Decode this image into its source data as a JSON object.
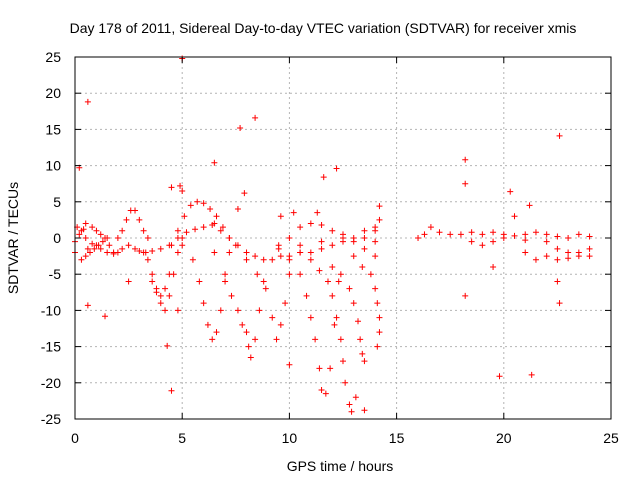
{
  "chart_data": {
    "type": "scatter",
    "title": "Day 178 of 2011, Sidereal Day-to-day VTEC variation (SDTVAR) for receiver xmis",
    "xlabel": "GPS time / hours",
    "ylabel": "SDTVAR / TECUs",
    "xlim": [
      0,
      25
    ],
    "ylim": [
      -25,
      25
    ],
    "xticks": [
      "0",
      "5",
      "10",
      "15",
      "20",
      "25"
    ],
    "yticks": [
      "25",
      "20",
      "15",
      "10",
      "5",
      "0",
      "-5",
      "-10",
      "-15",
      "-20",
      "-25"
    ],
    "grid": true,
    "marker": "+",
    "color": "#ff0000",
    "series": [
      {
        "name": "SDTVAR",
        "points": [
          [
            0.0,
            -0.5
          ],
          [
            0.2,
            0.5
          ],
          [
            0.4,
            1.2
          ],
          [
            0.5,
            0.0
          ],
          [
            0.6,
            -1.5
          ],
          [
            0.8,
            -0.8
          ],
          [
            1.0,
            -1.0
          ],
          [
            1.2,
            -1.5
          ],
          [
            1.5,
            -2.0
          ],
          [
            1.8,
            -2.2
          ],
          [
            2.0,
            -2.0
          ],
          [
            2.2,
            -1.5
          ],
          [
            2.5,
            -1.0
          ],
          [
            2.8,
            -1.5
          ],
          [
            3.0,
            -1.8
          ],
          [
            3.3,
            -2.0
          ],
          [
            3.6,
            -1.8
          ],
          [
            4.0,
            -1.5
          ],
          [
            4.4,
            -1.0
          ],
          [
            4.8,
            0.0
          ],
          [
            5.2,
            0.8
          ],
          [
            5.6,
            1.2
          ],
          [
            6.0,
            1.5
          ],
          [
            6.4,
            1.8
          ],
          [
            6.8,
            1.0
          ],
          [
            7.2,
            0.0
          ],
          [
            7.6,
            -1.0
          ],
          [
            8.0,
            -2.0
          ],
          [
            8.4,
            -2.5
          ],
          [
            8.8,
            -3.0
          ],
          [
            9.2,
            -3.0
          ],
          [
            9.6,
            -2.5
          ],
          [
            10.0,
            -2.5
          ],
          [
            10.5,
            -2.0
          ],
          [
            11.0,
            -2.0
          ],
          [
            11.5,
            -1.5
          ],
          [
            12.0,
            -1.0
          ],
          [
            12.5,
            -0.5
          ],
          [
            13.0,
            0.0
          ],
          [
            13.5,
            0.0
          ],
          [
            14.0,
            -0.5
          ],
          [
            0.3,
            1.0
          ],
          [
            0.5,
            2.0
          ],
          [
            0.8,
            1.5
          ],
          [
            1.0,
            1.0
          ],
          [
            1.2,
            0.5
          ],
          [
            1.4,
            0.0
          ],
          [
            1.6,
            -1.0
          ],
          [
            1.8,
            -2.0
          ],
          [
            0.3,
            -3.0
          ],
          [
            0.5,
            -2.5
          ],
          [
            0.7,
            -2.0
          ],
          [
            0.9,
            -1.5
          ],
          [
            1.1,
            -1.0
          ],
          [
            1.3,
            -0.5
          ],
          [
            1.5,
            0.0
          ],
          [
            2.0,
            0.0
          ],
          [
            2.2,
            1.0
          ],
          [
            2.4,
            2.5
          ],
          [
            2.6,
            3.8
          ],
          [
            2.8,
            3.8
          ],
          [
            3.0,
            2.5
          ],
          [
            3.2,
            1.0
          ],
          [
            3.4,
            0.0
          ],
          [
            3.2,
            -2.0
          ],
          [
            3.4,
            -3.0
          ],
          [
            3.6,
            -5.0
          ],
          [
            3.8,
            -7.0
          ],
          [
            4.0,
            -9.0
          ],
          [
            4.2,
            -10.0
          ],
          [
            4.4,
            -8.0
          ],
          [
            4.6,
            -5.0
          ],
          [
            4.8,
            -2.0
          ],
          [
            5.0,
            0.0
          ],
          [
            3.6,
            -6.0
          ],
          [
            3.8,
            -7.5
          ],
          [
            4.0,
            -8.0
          ],
          [
            4.2,
            -7.0
          ],
          [
            4.4,
            -5.0
          ],
          [
            4.5,
            -1.0
          ],
          [
            4.8,
            1.0
          ],
          [
            5.1,
            3.0
          ],
          [
            5.4,
            4.5
          ],
          [
            5.7,
            5.0
          ],
          [
            6.0,
            4.8
          ],
          [
            6.3,
            4.0
          ],
          [
            6.6,
            3.0
          ],
          [
            6.9,
            1.5
          ],
          [
            7.2,
            0.0
          ],
          [
            5.0,
            -1.0
          ],
          [
            5.5,
            -3.0
          ],
          [
            5.8,
            -6.0
          ],
          [
            6.0,
            -9.0
          ],
          [
            6.2,
            -12.0
          ],
          [
            6.4,
            -14.0
          ],
          [
            6.6,
            -13.0
          ],
          [
            6.8,
            -10.0
          ],
          [
            7.0,
            -6.0
          ],
          [
            7.2,
            -2.0
          ],
          [
            6.5,
            -2.0
          ],
          [
            7.0,
            -5.0
          ],
          [
            7.3,
            -8.0
          ],
          [
            7.6,
            -10.0
          ],
          [
            7.8,
            -12.0
          ],
          [
            8.0,
            -13.0
          ],
          [
            8.1,
            -15.0
          ],
          [
            8.2,
            -16.5
          ],
          [
            8.4,
            -14.0
          ],
          [
            8.6,
            -10.0
          ],
          [
            8.8,
            -6.0
          ],
          [
            7.5,
            -1.0
          ],
          [
            8.0,
            -3.0
          ],
          [
            8.5,
            -5.0
          ],
          [
            8.9,
            -7.0
          ],
          [
            9.2,
            -11.0
          ],
          [
            9.4,
            -14.0
          ],
          [
            9.6,
            -12.0
          ],
          [
            9.8,
            -9.0
          ],
          [
            10.0,
            -5.0
          ],
          [
            9.5,
            -1.0
          ],
          [
            10.0,
            -3.0
          ],
          [
            10.5,
            -5.0
          ],
          [
            10.8,
            -8.0
          ],
          [
            11.0,
            -11.0
          ],
          [
            11.2,
            -14.0
          ],
          [
            11.4,
            -18.0
          ],
          [
            11.5,
            -21.0
          ],
          [
            11.7,
            -21.5
          ],
          [
            11.9,
            -18.0
          ],
          [
            12.1,
            -12.0
          ],
          [
            12.3,
            -6.0
          ],
          [
            10.5,
            -2.0
          ],
          [
            11.0,
            -3.0
          ],
          [
            11.4,
            -4.5
          ],
          [
            11.8,
            -6.0
          ],
          [
            12.0,
            -8.0
          ],
          [
            12.2,
            -11.0
          ],
          [
            12.4,
            -14.0
          ],
          [
            12.5,
            -17.0
          ],
          [
            12.6,
            -20.0
          ],
          [
            12.8,
            -23.0
          ],
          [
            12.9,
            -24.0
          ],
          [
            13.1,
            -22.0
          ],
          [
            12.0,
            -4.0
          ],
          [
            12.4,
            -5.0
          ],
          [
            12.8,
            -7.0
          ],
          [
            13.0,
            -9.0
          ],
          [
            13.2,
            -11.5
          ],
          [
            13.3,
            -14.0
          ],
          [
            13.4,
            -16.0
          ],
          [
            13.5,
            -17.0
          ],
          [
            13.0,
            -2.5
          ],
          [
            13.4,
            -4.0
          ],
          [
            13.8,
            -5.0
          ],
          [
            14.0,
            -7.0
          ],
          [
            14.1,
            -9.0
          ],
          [
            14.2,
            -11.0
          ],
          [
            14.2,
            -13.0
          ],
          [
            14.1,
            -15.0
          ],
          [
            10.0,
            0.0
          ],
          [
            10.5,
            1.5
          ],
          [
            11.0,
            2.0
          ],
          [
            11.5,
            1.8
          ],
          [
            12.0,
            1.0
          ],
          [
            12.5,
            0.0
          ],
          [
            13.0,
            -0.5
          ],
          [
            13.5,
            -1.5
          ],
          [
            14.0,
            -2.5
          ],
          [
            9.5,
            -1.5
          ],
          [
            10.5,
            -1.0
          ],
          [
            11.5,
            -0.5
          ],
          [
            12.5,
            0.5
          ],
          [
            13.5,
            1.0
          ],
          [
            14.0,
            1.5
          ],
          [
            16.0,
            0.0
          ],
          [
            16.3,
            0.5
          ],
          [
            16.6,
            1.5
          ],
          [
            17.0,
            0.8
          ],
          [
            17.5,
            0.5
          ],
          [
            18.0,
            0.5
          ],
          [
            18.5,
            0.8
          ],
          [
            19.0,
            0.5
          ],
          [
            19.5,
            0.8
          ],
          [
            20.0,
            0.5
          ],
          [
            20.5,
            0.3
          ],
          [
            21.0,
            0.5
          ],
          [
            21.5,
            0.8
          ],
          [
            22.0,
            0.5
          ],
          [
            22.5,
            0.2
          ],
          [
            23.0,
            0.0
          ],
          [
            23.5,
            0.5
          ],
          [
            24.0,
            0.2
          ],
          [
            18.5,
            -0.5
          ],
          [
            19.0,
            -1.0
          ],
          [
            19.5,
            -0.5
          ],
          [
            20.0,
            0.0
          ],
          [
            21.0,
            -0.3
          ],
          [
            22.0,
            -0.5
          ],
          [
            22.5,
            -1.5
          ],
          [
            23.0,
            -2.0
          ],
          [
            23.5,
            -2.5
          ],
          [
            24.0,
            -2.5
          ],
          [
            21.0,
            -2.0
          ],
          [
            21.5,
            -3.0
          ],
          [
            22.0,
            -2.5
          ],
          [
            22.5,
            -3.0
          ],
          [
            23.0,
            -2.8
          ],
          [
            23.5,
            -2.0
          ],
          [
            24.0,
            -1.5
          ],
          [
            0.2,
            9.7
          ],
          [
            0.6,
            18.8
          ],
          [
            0.6,
            -9.3
          ],
          [
            1.4,
            -10.8
          ],
          [
            4.3,
            -14.9
          ],
          [
            4.5,
            -21.1
          ],
          [
            4.8,
            -10.0
          ],
          [
            5.0,
            24.8
          ],
          [
            6.5,
            10.4
          ],
          [
            7.7,
            15.2
          ],
          [
            8.4,
            16.6
          ],
          [
            7.6,
            4.0
          ],
          [
            7.9,
            6.2
          ],
          [
            4.5,
            7.0
          ],
          [
            4.9,
            7.2
          ],
          [
            5.0,
            6.5
          ],
          [
            10.0,
            -17.5
          ],
          [
            11.3,
            3.5
          ],
          [
            11.6,
            8.4
          ],
          [
            12.2,
            9.6
          ],
          [
            13.5,
            -23.8
          ],
          [
            14.2,
            4.4
          ],
          [
            18.2,
            10.8
          ],
          [
            18.2,
            7.5
          ],
          [
            18.2,
            -8.0
          ],
          [
            19.5,
            -4.0
          ],
          [
            19.8,
            -19.1
          ],
          [
            20.3,
            6.4
          ],
          [
            21.3,
            -18.9
          ],
          [
            22.6,
            14.1
          ],
          [
            22.6,
            -9.0
          ],
          [
            22.5,
            -6.0
          ],
          [
            21.2,
            4.5
          ],
          [
            20.5,
            3.0
          ],
          [
            14.0,
            1.0
          ],
          [
            14.2,
            2.5
          ],
          [
            9.6,
            3.0
          ],
          [
            10.2,
            3.5
          ],
          [
            0.1,
            1.5
          ],
          [
            0.0,
            -2.0
          ],
          [
            2.5,
            -6.0
          ],
          [
            6.5,
            2.0
          ]
        ]
      }
    ]
  }
}
